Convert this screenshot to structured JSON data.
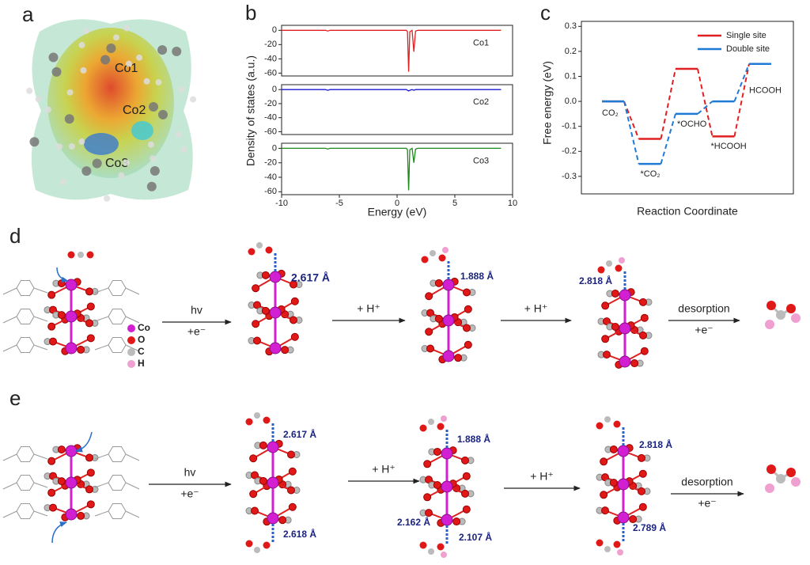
{
  "panel_labels": [
    "a",
    "b",
    "c",
    "d",
    "e"
  ],
  "panel_a": {
    "atom_labels": [
      "Co1",
      "Co2",
      "Co3"
    ]
  },
  "chart_data": [
    {
      "type": "line",
      "x": [
        -10,
        -6.2,
        -6.0,
        -5.8,
        0.8,
        0.9,
        1.0,
        1.1,
        1.3,
        1.45,
        1.6,
        1.8,
        9
      ],
      "series": [
        {
          "name": "Co1",
          "color": "#e02020",
          "values": [
            0,
            0,
            -1,
            0,
            0,
            -2,
            -58,
            -2,
            0,
            -30,
            -1,
            0,
            0
          ]
        }
      ],
      "xlim": [
        -10,
        10
      ],
      "ylim": [
        -64,
        7
      ],
      "yticks": [
        0,
        -20,
        -40,
        -60
      ]
    },
    {
      "type": "line",
      "x": [
        -10,
        -6.2,
        -6.0,
        -5.8,
        0.8,
        0.9,
        1.0,
        1.1,
        1.3,
        1.45,
        1.6,
        1.8,
        9
      ],
      "series": [
        {
          "name": "Co2",
          "color": "#1a1ad0",
          "values": [
            0,
            0,
            -1,
            0,
            0,
            -1,
            -2,
            -1,
            0,
            -1,
            0,
            0,
            0
          ]
        }
      ],
      "ylabel": "Density of states (a.u.)",
      "xlim": [
        -10,
        10
      ],
      "ylim": [
        -64,
        7
      ],
      "yticks": [
        0,
        -20,
        -40,
        -60
      ]
    },
    {
      "type": "line",
      "x": [
        -10,
        -6.2,
        -6.0,
        -5.8,
        0.8,
        0.9,
        1.0,
        1.1,
        1.3,
        1.45,
        1.6,
        1.8,
        9
      ],
      "series": [
        {
          "name": "Co3",
          "color": "#1a8a1a",
          "values": [
            0,
            0,
            -1,
            0,
            0,
            -2,
            -58,
            -2,
            0,
            -20,
            -1,
            0,
            0
          ]
        }
      ],
      "xlabel": "Energy (eV)",
      "xlim": [
        -10,
        10
      ],
      "ylim": [
        -64,
        7
      ],
      "yticks": [
        0,
        -20,
        -40,
        -60
      ],
      "xticks": [
        -10,
        -5,
        0,
        5,
        10
      ]
    },
    {
      "type": "energy-levels",
      "xlabel": "Reaction Coordinate",
      "ylabel": "Free energy (eV)",
      "state_labels": [
        "CO₂",
        "*CO₂",
        "*OCHO",
        "*HCOOH",
        "HCOOH"
      ],
      "series": [
        {
          "name": "Single site",
          "color": "#e02020",
          "values": [
            0,
            -0.15,
            0.13,
            -0.14,
            0.15
          ]
        },
        {
          "name": "Double site",
          "color": "#1f7ad6",
          "values": [
            0,
            -0.25,
            -0.05,
            0,
            0.15
          ]
        }
      ],
      "ylim": [
        -0.37,
        0.32
      ],
      "yticks": [
        {
          "value": -0.3,
          "label": "-0.3"
        },
        {
          "value": -0.2,
          "label": "-0.2"
        },
        {
          "value": -0.1,
          "label": "-0.1"
        },
        {
          "value": 0,
          "label": "0.0"
        },
        0.1,
        0.2,
        0.3
      ],
      "legend": "upper right"
    }
  ],
  "panel_d": {
    "legend": [
      "Co",
      "O",
      "C",
      "H"
    ],
    "steps": [
      {
        "above": "hv",
        "below": "+e⁻"
      },
      {
        "above": "+ H⁺"
      },
      {
        "above": "+ H⁺"
      },
      {
        "above": "desorption",
        "below": "+e⁻"
      }
    ],
    "distances": [
      "2.617 Å",
      "1.888 Å",
      "2.818 Å"
    ]
  },
  "panel_e": {
    "steps": [
      {
        "above": "hv",
        "below": "+e⁻"
      },
      {
        "above": "+ H⁺"
      },
      {
        "above": "+ H⁺"
      },
      {
        "above": "desorption",
        "below": "+e⁻"
      }
    ],
    "distances": [
      "2.617 Å",
      "2.618 Å",
      "1.888 Å",
      "2.162 Å",
      "2.107 Å",
      "2.818 Å",
      "2.789 Å"
    ]
  }
}
